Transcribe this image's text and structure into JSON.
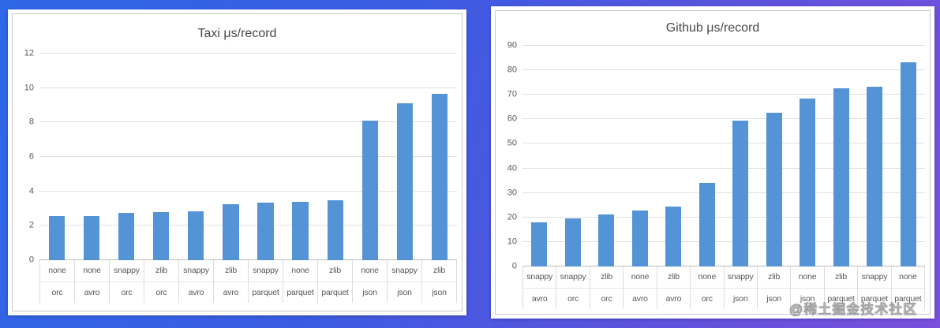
{
  "watermark": {
    "text": "@稀土掘金技术社区"
  },
  "colors": {
    "bar": "#5494d6",
    "gridline": "#e0e0e0",
    "axis_line": "#bcbcbc",
    "text": "#595959",
    "title": "#474747",
    "background_left": "#2e67e7",
    "background_right": "#7a4fdd"
  },
  "chart_data": [
    {
      "type": "bar",
      "title": "Taxi μs/record",
      "xlabel": "",
      "ylabel": "",
      "ylim": [
        0,
        12
      ],
      "yticks": [
        0,
        2,
        4,
        6,
        8,
        10,
        12
      ],
      "grid": true,
      "legend": "none",
      "bar_color": "#5494d6",
      "categories": [
        {
          "compression": "none",
          "format": "orc"
        },
        {
          "compression": "none",
          "format": "avro"
        },
        {
          "compression": "snappy",
          "format": "orc"
        },
        {
          "compression": "zlib",
          "format": "orc"
        },
        {
          "compression": "snappy",
          "format": "avro"
        },
        {
          "compression": "zlib",
          "format": "avro"
        },
        {
          "compression": "snappy",
          "format": "parquet"
        },
        {
          "compression": "none",
          "format": "parquet"
        },
        {
          "compression": "zlib",
          "format": "parquet"
        },
        {
          "compression": "none",
          "format": "json"
        },
        {
          "compression": "snappy",
          "format": "json"
        },
        {
          "compression": "zlib",
          "format": "json"
        }
      ],
      "values": [
        2.55,
        2.58,
        2.73,
        2.78,
        2.82,
        3.25,
        3.36,
        3.4,
        3.5,
        8.1,
        9.1,
        9.65
      ]
    },
    {
      "type": "bar",
      "title": "Github μs/record",
      "xlabel": "",
      "ylabel": "",
      "ylim": [
        0,
        90
      ],
      "yticks": [
        0,
        10,
        20,
        30,
        40,
        50,
        60,
        70,
        80,
        90
      ],
      "grid": true,
      "legend": "none",
      "bar_color": "#5494d6",
      "categories": [
        {
          "compression": "snappy",
          "format": "avro"
        },
        {
          "compression": "snappy",
          "format": "orc"
        },
        {
          "compression": "zlib",
          "format": "orc"
        },
        {
          "compression": "none",
          "format": "avro"
        },
        {
          "compression": "zlib",
          "format": "avro"
        },
        {
          "compression": "none",
          "format": "orc"
        },
        {
          "compression": "snappy",
          "format": "json"
        },
        {
          "compression": "zlib",
          "format": "json"
        },
        {
          "compression": "none",
          "format": "json"
        },
        {
          "compression": "zlib",
          "format": "parquet"
        },
        {
          "compression": "snappy",
          "format": "parquet"
        },
        {
          "compression": "none",
          "format": "parquet"
        }
      ],
      "values": [
        18.0,
        19.6,
        21.2,
        22.9,
        24.5,
        34.1,
        59.4,
        62.7,
        68.5,
        72.5,
        73.4,
        83.2
      ]
    }
  ]
}
